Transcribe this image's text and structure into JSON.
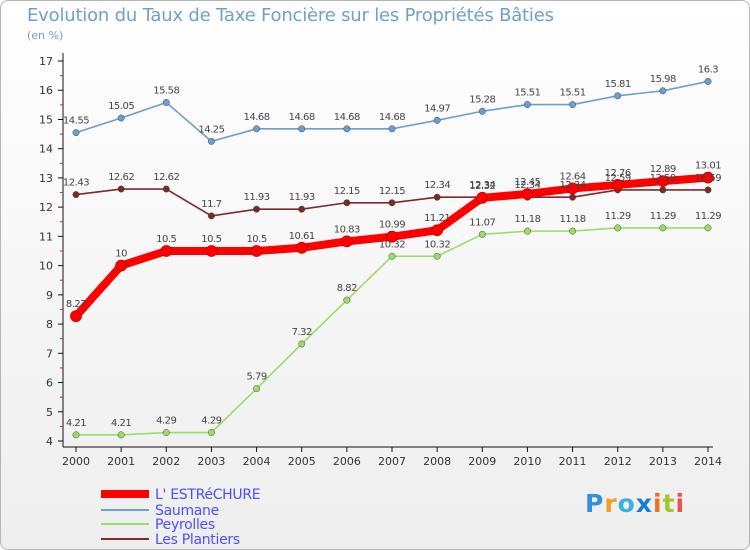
{
  "chart_data": {
    "type": "line",
    "title": "Evolution du Taux de Taxe Foncière sur les Propriétés Bâties",
    "subtitle": "(en %)",
    "xlabel": "",
    "ylabel": "",
    "x": [
      "2000",
      "2001",
      "2002",
      "2003",
      "2004",
      "2005",
      "2006",
      "2007",
      "2008",
      "2009",
      "2010",
      "2011",
      "2012",
      "2013",
      "2014"
    ],
    "yticks": [
      "4",
      "5",
      "6",
      "7",
      "8",
      "9",
      "10",
      "11",
      "12",
      "13",
      "14",
      "15",
      "16",
      "17"
    ],
    "ylim": [
      4,
      17
    ],
    "grid": false,
    "legend_position": "bottom-left",
    "series": [
      {
        "name": "L' ESTRéCHURE",
        "color": "#ff0000",
        "values": [
          8.27,
          10,
          10.5,
          10.5,
          10.5,
          10.61,
          10.83,
          10.99,
          11.21,
          12.32,
          12.45,
          12.64,
          12.76,
          12.89,
          13.01
        ],
        "labels": [
          "8.27",
          "10",
          "10.5",
          "10.5",
          "10.5",
          "10.61",
          "10.83",
          "10.99",
          "11.21",
          "12.32",
          "12.45",
          "12.64",
          "12.76",
          "12.89",
          "13.01"
        ]
      },
      {
        "name": "Saumane",
        "color": "#6b9fcf",
        "values": [
          14.55,
          15.05,
          15.58,
          14.25,
          14.68,
          14.68,
          14.68,
          14.68,
          14.97,
          15.28,
          15.51,
          15.51,
          15.81,
          15.98,
          16.3
        ],
        "labels": [
          "14.55",
          "15.05",
          "15.58",
          "14.25",
          "14.68",
          "14.68",
          "14.68",
          "14.68",
          "14.97",
          "15.28",
          "15.51",
          "15.51",
          "15.81",
          "15.98",
          "16.3"
        ]
      },
      {
        "name": "Peyrolles",
        "color": "#99dd66",
        "values": [
          4.21,
          4.21,
          4.29,
          4.29,
          5.79,
          7.32,
          8.82,
          10.32,
          10.32,
          11.07,
          11.18,
          11.18,
          11.29,
          11.29,
          11.29
        ],
        "labels": [
          "4.21",
          "4.21",
          "4.29",
          "4.29",
          "5.79",
          "7.32",
          "8.82",
          "10.32",
          "10.32",
          "11.07",
          "11.18",
          "11.18",
          "11.29",
          "11.29",
          "11.29"
        ]
      },
      {
        "name": "Les Plantiers",
        "color": "#7a2a2a",
        "values": [
          12.43,
          12.62,
          12.62,
          11.7,
          11.93,
          11.93,
          12.15,
          12.15,
          12.34,
          12.34,
          12.34,
          12.34,
          12.59,
          12.59,
          12.59
        ],
        "labels": [
          "12.43",
          "12.62",
          "12.62",
          "11.7",
          "11.93",
          "11.93",
          "12.15",
          "12.15",
          "12.34",
          "12.34",
          "12.34",
          "12.34",
          "12.59",
          "12.59",
          "12.59"
        ]
      }
    ]
  },
  "logo": {
    "letters": [
      "P",
      "r",
      "o",
      "x",
      "i",
      "t",
      "i"
    ],
    "colors": [
      "#2f8fe0",
      "#f0a020",
      "#3ab0e0",
      "#1a7fd0",
      "#f07020",
      "#a0c830",
      "#f05050"
    ]
  }
}
